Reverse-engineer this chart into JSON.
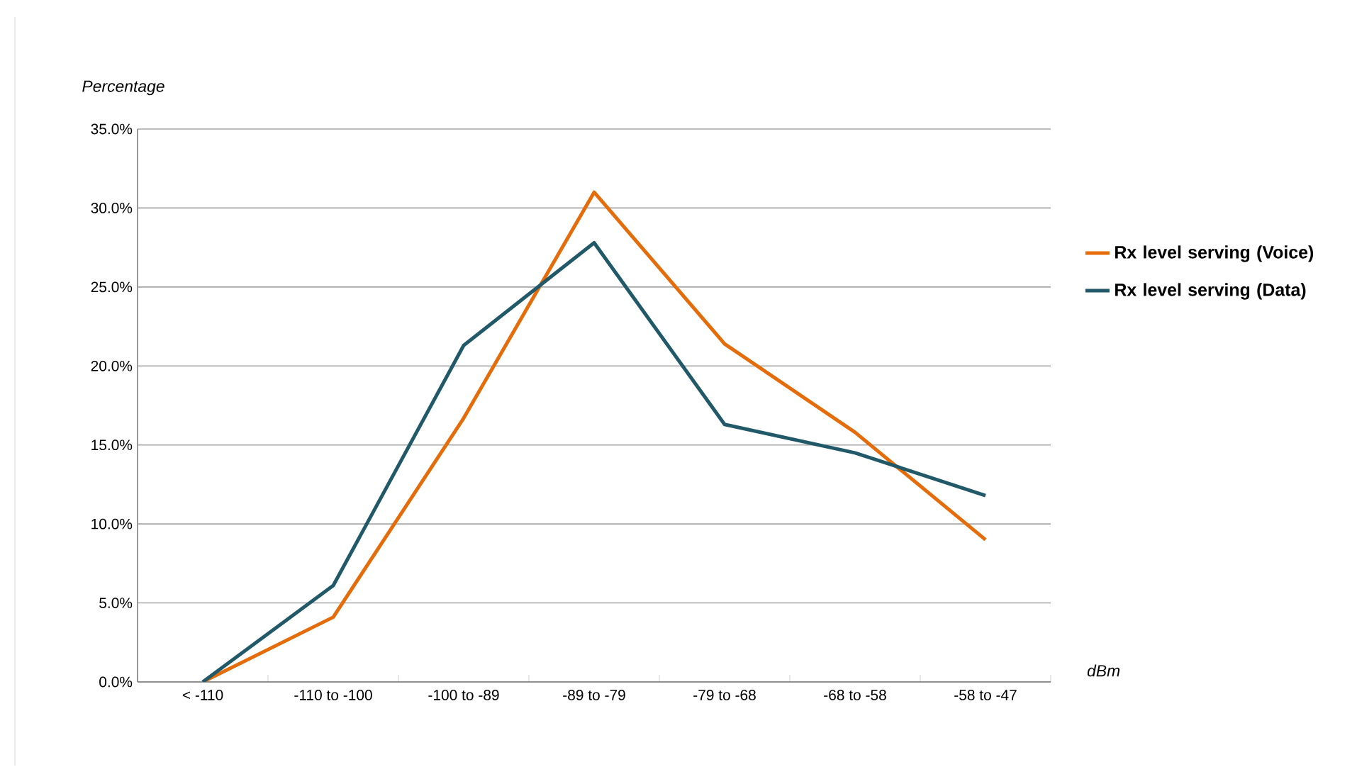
{
  "chart_data": {
    "type": "line",
    "ylabel": "Percentage",
    "xlabel": "dBm",
    "categories": [
      "< -110",
      "-110 to -100",
      "-100 to -89",
      "-89 to -79",
      "-79 to -68",
      "-68 to -58",
      "-58 to -47"
    ],
    "series": [
      {
        "name": "Rx level serving (Voice)",
        "color": "#e46c0a",
        "values": [
          0.0,
          4.1,
          16.7,
          31.0,
          21.4,
          15.8,
          9.0
        ]
      },
      {
        "name": "Rx level serving (Data)",
        "color": "#215968",
        "values": [
          0.0,
          6.1,
          21.3,
          27.8,
          16.3,
          14.5,
          11.8
        ]
      }
    ],
    "ylim": [
      0,
      35
    ],
    "yticks": [
      {
        "value": 0,
        "label": "0.0%"
      },
      {
        "value": 5,
        "label": "5.0%"
      },
      {
        "value": 10,
        "label": "10.0%"
      },
      {
        "value": 15,
        "label": "15.0%"
      },
      {
        "value": 20,
        "label": "20.0%"
      },
      {
        "value": 25,
        "label": "25.0%"
      },
      {
        "value": 30,
        "label": "30.0%"
      },
      {
        "value": 35,
        "label": "35.0%"
      }
    ],
    "grid": "y",
    "legend": "right",
    "marker": "none",
    "line_style": "solid"
  }
}
